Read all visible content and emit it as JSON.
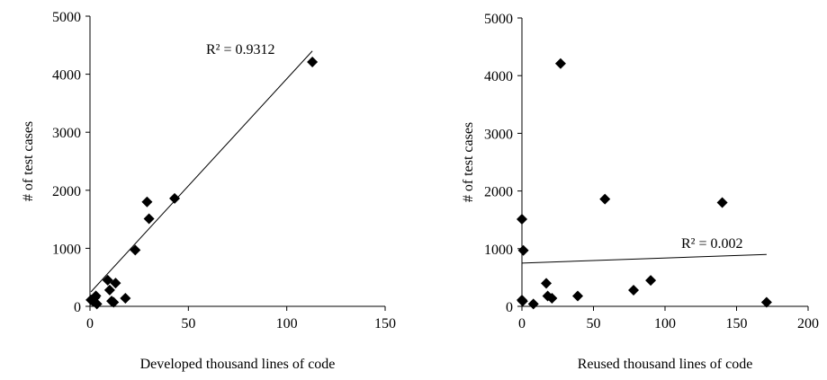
{
  "chart_data": [
    {
      "type": "scatter",
      "title": "",
      "xlabel": "Developed thousand lines of code",
      "ylabel": "# of test cases",
      "xlim": [
        0,
        150
      ],
      "ylim": [
        0,
        5000
      ],
      "xticks": [
        "0",
        "50",
        "100",
        "150"
      ],
      "yticks": [
        "0",
        "1000",
        "2000",
        "3000",
        "4000",
        "5000"
      ],
      "grid": false,
      "marker": "diamond",
      "points": [
        {
          "x": 0.5,
          "y": 110
        },
        {
          "x": 1.5,
          "y": 90
        },
        {
          "x": 2.5,
          "y": 150
        },
        {
          "x": 3,
          "y": 180
        },
        {
          "x": 3.5,
          "y": 40
        },
        {
          "x": 9,
          "y": 450
        },
        {
          "x": 10,
          "y": 280
        },
        {
          "x": 11,
          "y": 90
        },
        {
          "x": 12,
          "y": 70
        },
        {
          "x": 13,
          "y": 400
        },
        {
          "x": 18,
          "y": 140
        },
        {
          "x": 23,
          "y": 970
        },
        {
          "x": 29,
          "y": 1800
        },
        {
          "x": 30,
          "y": 1510
        },
        {
          "x": 43,
          "y": 1860
        },
        {
          "x": 113,
          "y": 4210
        }
      ],
      "trendline": {
        "x": [
          0.5,
          113
        ],
        "y": [
          250,
          4400
        ]
      },
      "annotation": "R² = 0.9312"
    },
    {
      "type": "scatter",
      "title": "",
      "xlabel": "Reused thousand lines of code",
      "ylabel": "# of test cases",
      "xlim": [
        0,
        200
      ],
      "ylim": [
        0,
        5000
      ],
      "xticks": [
        "0",
        "50",
        "100",
        "150",
        "200"
      ],
      "yticks": [
        "0",
        "1000",
        "2000",
        "3000",
        "4000",
        "5000"
      ],
      "grid": false,
      "marker": "diamond",
      "points": [
        {
          "x": 0,
          "y": 110
        },
        {
          "x": 0.5,
          "y": 90
        },
        {
          "x": 0,
          "y": 1510
        },
        {
          "x": 1,
          "y": 970
        },
        {
          "x": 8,
          "y": 40
        },
        {
          "x": 17,
          "y": 400
        },
        {
          "x": 18,
          "y": 180
        },
        {
          "x": 21,
          "y": 140
        },
        {
          "x": 27,
          "y": 4210
        },
        {
          "x": 39,
          "y": 180
        },
        {
          "x": 58,
          "y": 1860
        },
        {
          "x": 78,
          "y": 280
        },
        {
          "x": 90,
          "y": 450
        },
        {
          "x": 140,
          "y": 1800
        },
        {
          "x": 171,
          "y": 70
        }
      ],
      "trendline": {
        "x": [
          0,
          171
        ],
        "y": [
          750,
          900
        ]
      },
      "annotation": "R² = 0.002"
    }
  ]
}
